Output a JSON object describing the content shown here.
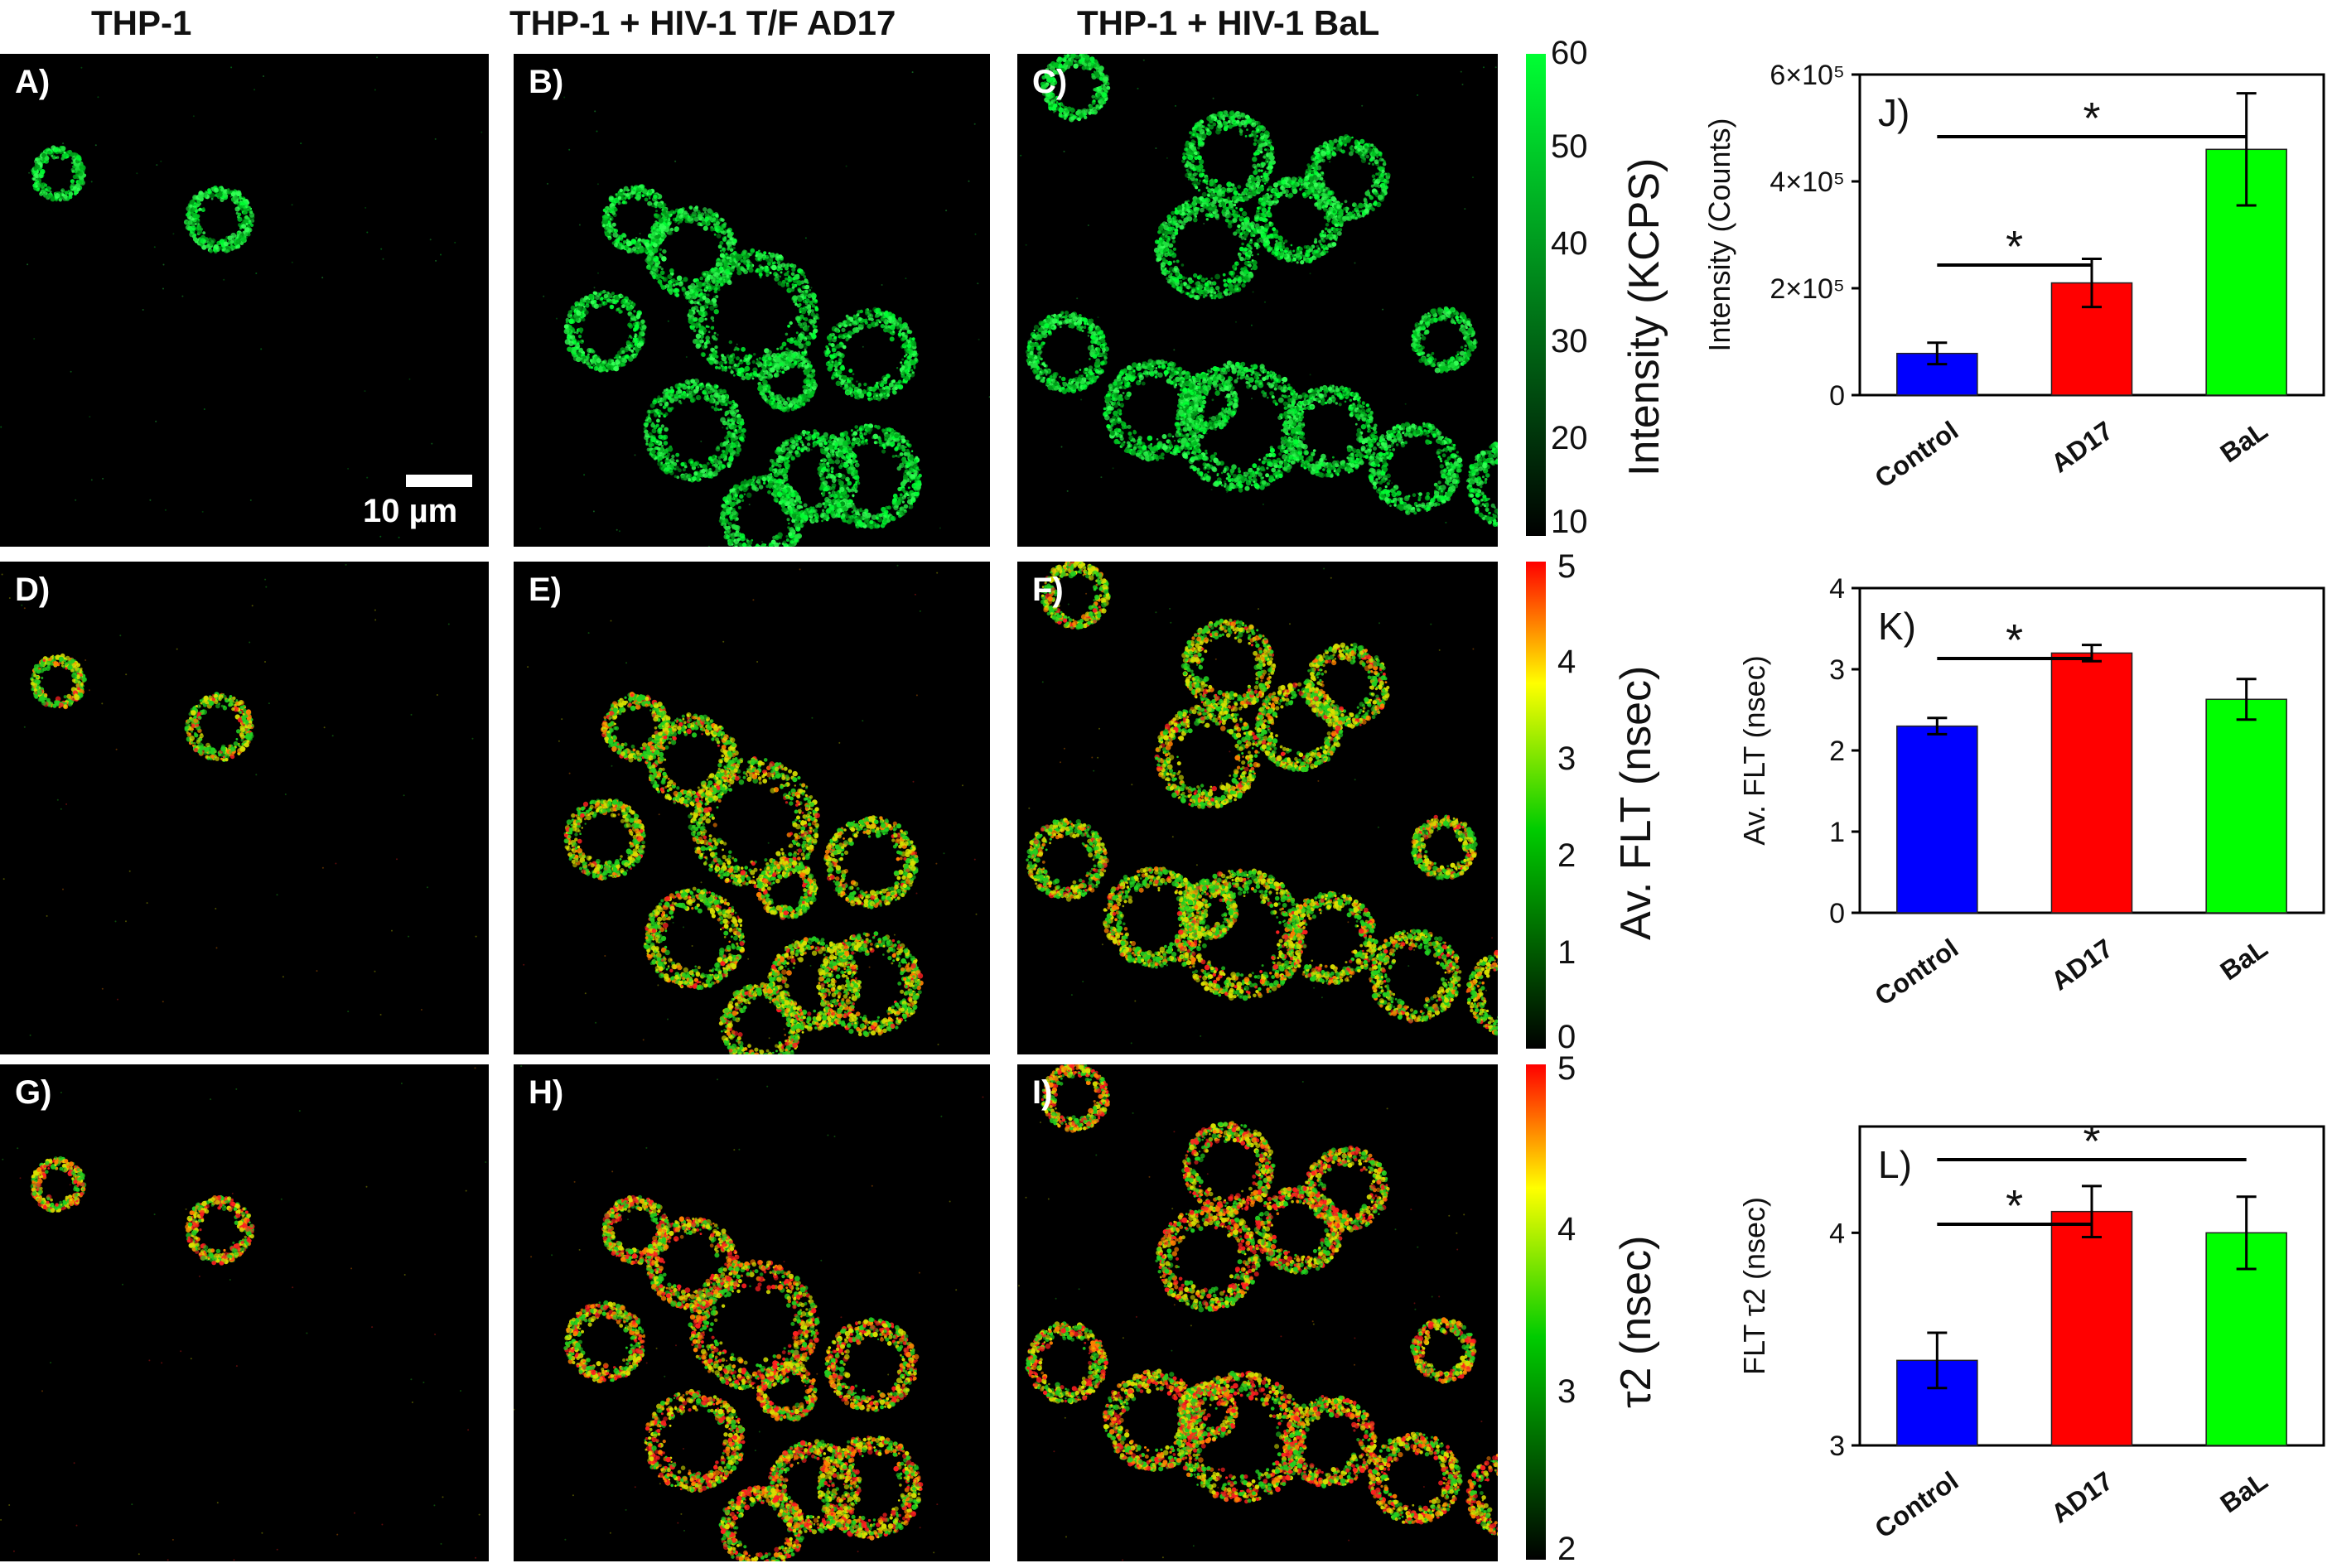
{
  "column_titles": [
    "THP-1",
    "THP-1 + HIV-1 T/F AD17",
    "THP-1 + HIV-1 BaL"
  ],
  "panels": [
    "A)",
    "B)",
    "C)",
    "D)",
    "E)",
    "F)",
    "G)",
    "H)",
    "I)"
  ],
  "scale_bar": "10 µm",
  "colorbars": [
    {
      "title": "Intensity (KCPS)",
      "ticks": [
        "60",
        "50",
        "40",
        "30",
        "20",
        "10"
      ],
      "colors": [
        "#00ff33",
        "#000000"
      ]
    },
    {
      "title": "Av. FLT (nsec)",
      "ticks": [
        "5",
        "4",
        "3",
        "2",
        "1",
        "0"
      ],
      "colors": [
        "#ff0000",
        "#ffff00",
        "#00cc00",
        "#000000"
      ]
    },
    {
      "title": "τ2 (nsec)",
      "ticks": [
        "5",
        "4",
        "3",
        "2"
      ],
      "colors": [
        "#ff0000",
        "#ffff00",
        "#00cc00",
        "#000000"
      ]
    }
  ],
  "chart_data": [
    {
      "type": "bar",
      "panel_label": "J)",
      "categories": [
        "Control",
        "AD17",
        "BaL"
      ],
      "values": [
        78000,
        210000,
        460000
      ],
      "errors": [
        20000,
        45000,
        105000
      ],
      "colors": [
        "#0000ff",
        "#ff0000",
        "#00ff00"
      ],
      "ylabel": "Intensity (Counts)",
      "ylim": [
        0,
        600000
      ],
      "yticks": [
        {
          "value": 0,
          "label": "0"
        },
        {
          "value": 200000,
          "label": "2×10⁵"
        },
        {
          "value": 400000,
          "label": "4×10⁵"
        },
        {
          "value": 600000,
          "label": "6×10⁵"
        }
      ],
      "significance": [
        {
          "from": 0,
          "to": 2,
          "label": "*"
        },
        {
          "from": 0,
          "to": 1,
          "label": "*"
        }
      ]
    },
    {
      "type": "bar",
      "panel_label": "K)",
      "categories": [
        "Control",
        "AD17",
        "BaL"
      ],
      "values": [
        2.3,
        3.2,
        2.63
      ],
      "errors": [
        0.1,
        0.1,
        0.25
      ],
      "colors": [
        "#0000ff",
        "#ff0000",
        "#00ff00"
      ],
      "ylabel": "Av. FLT (nsec)",
      "ylim": [
        0,
        4
      ],
      "yticks": [
        {
          "value": 0,
          "label": "0"
        },
        {
          "value": 1,
          "label": "1"
        },
        {
          "value": 2,
          "label": "2"
        },
        {
          "value": 3,
          "label": "3"
        },
        {
          "value": 4,
          "label": "4"
        }
      ],
      "significance": [
        {
          "from": 0,
          "to": 1,
          "label": "*"
        }
      ]
    },
    {
      "type": "bar",
      "panel_label": "L)",
      "categories": [
        "Control",
        "AD17",
        "BaL"
      ],
      "values": [
        3.4,
        4.1,
        4.0
      ],
      "errors": [
        0.13,
        0.12,
        0.17
      ],
      "colors": [
        "#0000ff",
        "#ff0000",
        "#00ff00"
      ],
      "ylabel": "FLT τ2 (nsec)",
      "ylim": [
        3,
        4.5
      ],
      "yticks": [
        {
          "value": 3,
          "label": "3"
        },
        {
          "value": 4,
          "label": "4"
        }
      ],
      "significance": [
        {
          "from": 0,
          "to": 2,
          "label": "*"
        },
        {
          "from": 0,
          "to": 1,
          "label": "*"
        }
      ]
    }
  ]
}
